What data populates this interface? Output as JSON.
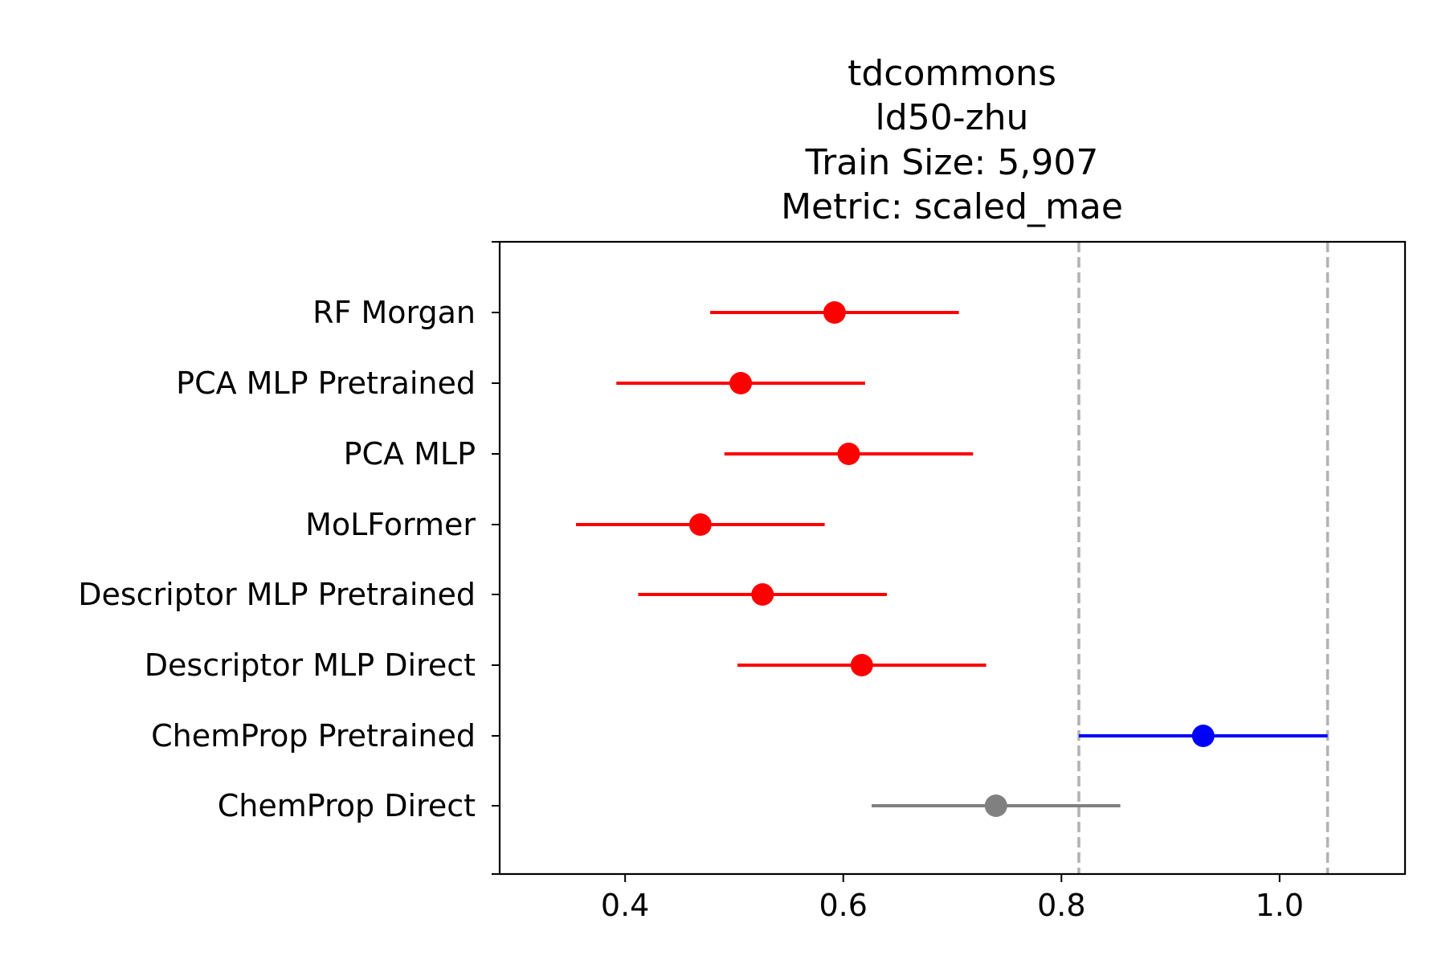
{
  "chart_data": {
    "type": "scatter",
    "title_lines": [
      "tdcommons",
      "ld50-zhu",
      "Train Size: 5,907",
      "Metric: scaled_mae"
    ],
    "xlabel": "",
    "ylabel": "",
    "xlim": [
      0.285,
      1.115
    ],
    "x_ticks": [
      0.4,
      0.6,
      0.8,
      1.0
    ],
    "x_tick_labels": [
      "0.4",
      "0.6",
      "0.8",
      "1.0"
    ],
    "grid": false,
    "reference_lines": [
      0.816,
      1.044
    ],
    "reference_line_color": "#b3b3b3",
    "series": [
      {
        "label": "RF Morgan",
        "value": 0.592,
        "low": 0.478,
        "high": 0.706,
        "color": "#ff0000"
      },
      {
        "label": "PCA MLP Pretrained",
        "value": 0.506,
        "low": 0.392,
        "high": 0.62,
        "color": "#ff0000"
      },
      {
        "label": "PCA MLP",
        "value": 0.605,
        "low": 0.491,
        "high": 0.719,
        "color": "#ff0000"
      },
      {
        "label": "MoLFormer",
        "value": 0.469,
        "low": 0.355,
        "high": 0.583,
        "color": "#ff0000"
      },
      {
        "label": "Descriptor MLP Pretrained",
        "value": 0.526,
        "low": 0.412,
        "high": 0.64,
        "color": "#ff0000"
      },
      {
        "label": "Descriptor MLP Direct",
        "value": 0.617,
        "low": 0.503,
        "high": 0.731,
        "color": "#ff0000"
      },
      {
        "label": "ChemProp Pretrained",
        "value": 0.93,
        "low": 0.816,
        "high": 1.044,
        "color": "#0000ff"
      },
      {
        "label": "ChemProp Direct",
        "value": 0.74,
        "low": 0.626,
        "high": 0.854,
        "color": "#808080"
      }
    ]
  }
}
